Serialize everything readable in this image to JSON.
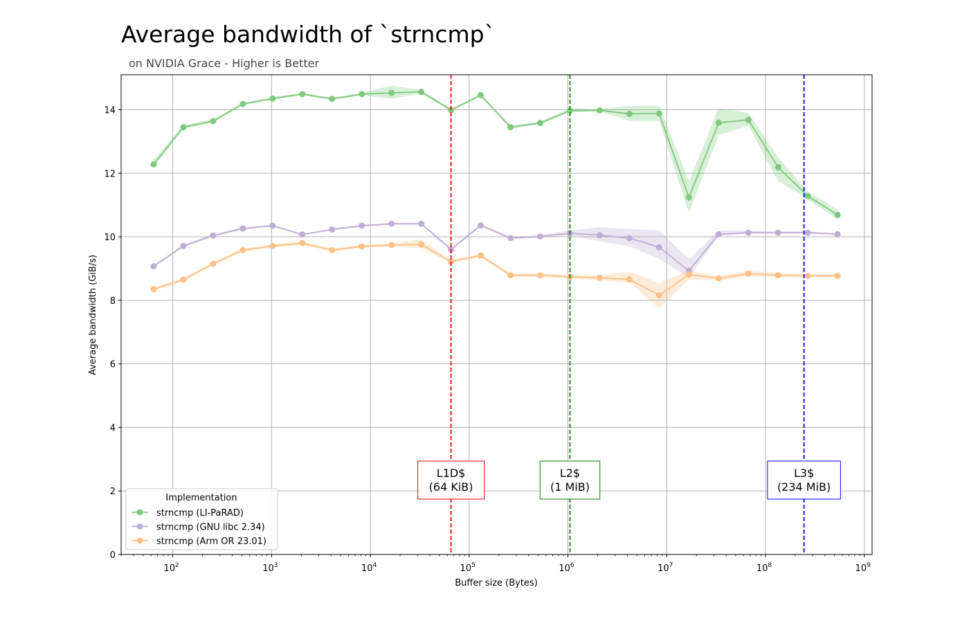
{
  "chart_data": {
    "type": "line",
    "title": "Average bandwidth of `strncmp`",
    "subtitle": "on NVIDIA Grace - Higher is Better",
    "xlabel": "Buffer size (Bytes)",
    "ylabel": "Average bandwidth (GiB/s)",
    "xscale": "log",
    "xlim": [
      30,
      1200000000
    ],
    "ylim": [
      0,
      15.1
    ],
    "xticks": [
      {
        "value": 100,
        "base": "10",
        "exp": "2"
      },
      {
        "value": 1000,
        "base": "10",
        "exp": "3"
      },
      {
        "value": 10000,
        "base": "10",
        "exp": "4"
      },
      {
        "value": 100000,
        "base": "10",
        "exp": "5"
      },
      {
        "value": 1000000,
        "base": "10",
        "exp": "6"
      },
      {
        "value": 10000000,
        "base": "10",
        "exp": "7"
      },
      {
        "value": 100000000,
        "base": "10",
        "exp": "8"
      },
      {
        "value": 1000000000,
        "base": "10",
        "exp": "9"
      }
    ],
    "yticks": [
      0,
      2,
      4,
      6,
      8,
      10,
      12,
      14
    ],
    "grid": true,
    "x": [
      64,
      128,
      256,
      512,
      1024,
      2048,
      4096,
      8192,
      16384,
      32768,
      65536,
      131072,
      262144,
      524288,
      1048576,
      2097152,
      4194304,
      8388608,
      16777216,
      33554432,
      67108864,
      134217728,
      268435456,
      536870912
    ],
    "legend": {
      "title": "Implementation",
      "position": "lower-left"
    },
    "series": [
      {
        "name": "strncmp (LI-PaRAD)",
        "color": "#7fc97f",
        "values": [
          12.28,
          13.45,
          13.64,
          14.18,
          14.35,
          14.49,
          14.34,
          14.49,
          14.53,
          14.56,
          13.99,
          14.46,
          13.45,
          13.58,
          13.97,
          13.98,
          13.87,
          13.88,
          11.24,
          13.59,
          13.68,
          12.19,
          11.28,
          10.69
        ],
        "lower": [
          12.18,
          13.4,
          13.6,
          14.14,
          14.32,
          14.46,
          14.31,
          14.45,
          14.35,
          14.5,
          13.95,
          14.42,
          13.4,
          13.54,
          13.93,
          13.94,
          13.65,
          13.65,
          10.75,
          13.2,
          13.5,
          11.75,
          11.18,
          10.55
        ],
        "upper": [
          12.42,
          13.52,
          13.7,
          14.22,
          14.4,
          14.53,
          14.38,
          14.53,
          14.76,
          14.62,
          14.03,
          14.5,
          13.5,
          13.62,
          14.05,
          14.02,
          14.12,
          14.13,
          11.75,
          14.05,
          13.9,
          12.5,
          11.42,
          10.85
        ]
      },
      {
        "name": "strncmp (GNU libc 2.34)",
        "color": "#beaed4",
        "values": [
          9.07,
          9.71,
          10.04,
          10.26,
          10.35,
          10.07,
          10.23,
          10.35,
          10.41,
          10.41,
          9.6,
          10.36,
          9.96,
          10.01,
          10.11,
          10.05,
          9.96,
          9.67,
          8.93,
          10.08,
          10.13,
          10.13,
          10.13,
          10.08
        ],
        "lower": [
          9.03,
          9.68,
          10.0,
          10.22,
          10.32,
          10.04,
          10.2,
          10.32,
          10.38,
          10.38,
          9.56,
          10.33,
          9.92,
          9.97,
          10.05,
          9.85,
          9.7,
          9.3,
          8.7,
          10.02,
          10.1,
          10.1,
          10.1,
          10.05
        ],
        "upper": [
          9.12,
          9.75,
          10.08,
          10.3,
          10.38,
          10.1,
          10.26,
          10.38,
          10.44,
          10.44,
          9.65,
          10.4,
          10.0,
          10.05,
          10.2,
          10.3,
          10.25,
          10.2,
          9.3,
          10.2,
          10.2,
          10.17,
          10.17,
          10.12
        ]
      },
      {
        "name": "strncmp (Arm OR 23.01)",
        "color": "#fdc086",
        "values": [
          8.35,
          8.65,
          9.15,
          9.58,
          9.71,
          9.8,
          9.58,
          9.7,
          9.74,
          9.76,
          9.22,
          9.41,
          8.79,
          8.79,
          8.74,
          8.71,
          8.66,
          8.16,
          8.81,
          8.69,
          8.84,
          8.79,
          8.77,
          8.77
        ],
        "lower": [
          8.3,
          8.6,
          9.1,
          9.53,
          9.66,
          9.75,
          9.53,
          9.65,
          9.69,
          9.65,
          9.17,
          9.36,
          8.72,
          8.73,
          8.7,
          8.62,
          8.55,
          7.75,
          8.65,
          8.62,
          8.75,
          8.72,
          8.72,
          8.72
        ],
        "upper": [
          8.4,
          8.7,
          9.2,
          9.63,
          9.76,
          9.86,
          9.63,
          9.75,
          9.79,
          9.92,
          9.27,
          9.46,
          8.86,
          8.85,
          8.8,
          8.8,
          8.9,
          8.55,
          8.95,
          8.76,
          8.93,
          8.86,
          8.82,
          8.82
        ]
      }
    ],
    "annotations": [
      {
        "line1": "L1D$",
        "line2": "(64 KiB)",
        "x": 65536,
        "color": "#ff0000"
      },
      {
        "line1": "L2$",
        "line2": "(1 MiB)",
        "x": 1048576,
        "color": "#008000"
      },
      {
        "line1": "L3$",
        "line2": "(234 MiB)",
        "x": 245366784,
        "color": "#0000ff"
      }
    ]
  }
}
